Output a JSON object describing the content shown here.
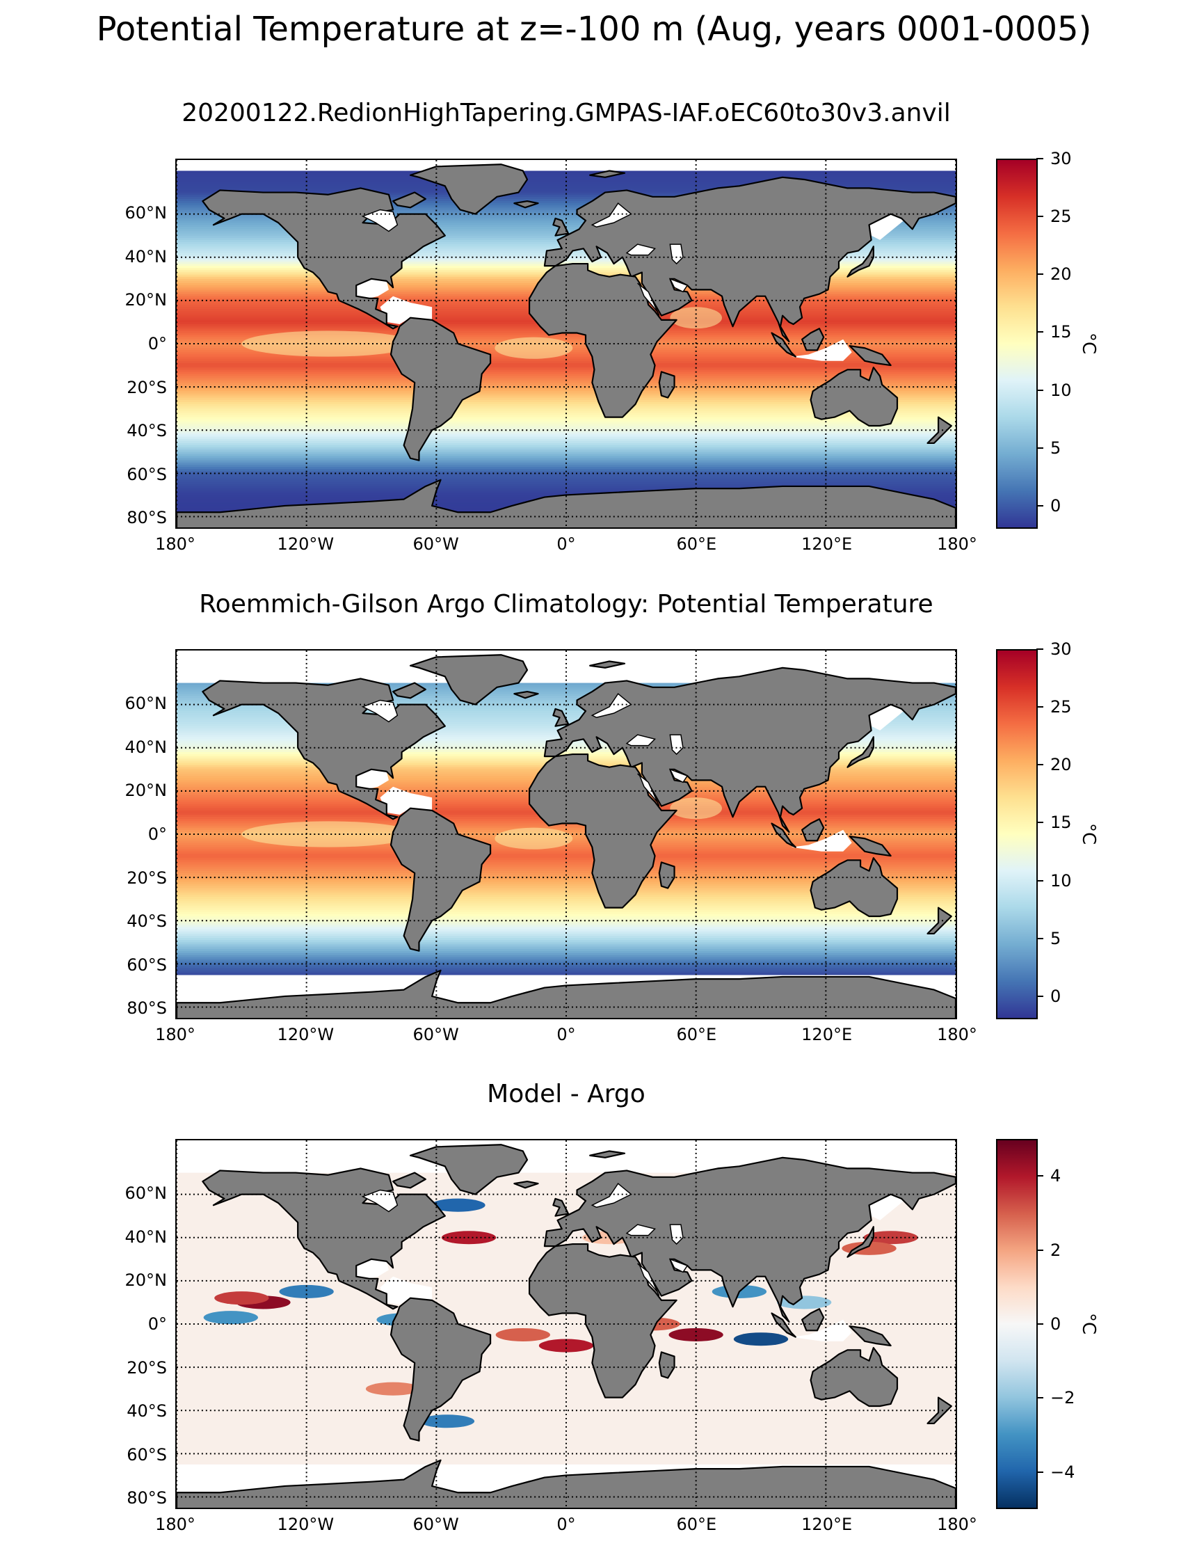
{
  "figure": {
    "suptitle": "Potential Temperature at z=-100 m (Aug, years 0001-0005)"
  },
  "colors": {
    "land": "#7f7f7f",
    "nodata": "#ffffff",
    "grid": "#000000",
    "rdylbu_r": [
      "#313695",
      "#4575b4",
      "#74add1",
      "#abd9e9",
      "#e0f3f8",
      "#ffffbf",
      "#fee090",
      "#fdae61",
      "#f46d43",
      "#d73027",
      "#a50026"
    ],
    "rdbu_r": [
      "#053061",
      "#2166ac",
      "#4393c3",
      "#92c5de",
      "#d1e5f0",
      "#f7f7f7",
      "#fddbc7",
      "#f4a582",
      "#d6604d",
      "#b2182b",
      "#67001f"
    ]
  },
  "chart_data": [
    {
      "type": "heatmap",
      "title": "20200122.RedionHighTapering.GMPAS-IAF.oEC60to30v3.anvil",
      "projection": "PlateCarree",
      "xlim": [
        -180,
        180
      ],
      "ylim": [
        -85,
        85
      ],
      "lon_ticks": [
        -180,
        -120,
        -60,
        0,
        60,
        120,
        180
      ],
      "lon_tick_labels": [
        "180°",
        "120°W",
        "60°W",
        "0°",
        "60°E",
        "120°E",
        "180°"
      ],
      "lat_ticks": [
        60,
        40,
        20,
        0,
        -20,
        -40,
        -60,
        -80
      ],
      "lat_tick_labels": [
        "60°N",
        "40°N",
        "20°N",
        "0°",
        "20°S",
        "40°S",
        "60°S",
        "80°S"
      ],
      "colormap": "RdYlBu_r",
      "clim": [
        -2,
        30
      ],
      "colorbar_ticks": [
        30,
        25,
        20,
        15,
        10,
        5,
        0
      ],
      "colorbar_tick_labels": [
        "30",
        "25",
        "20",
        "15",
        "10",
        "5",
        "0"
      ],
      "colorbar_label": "°C",
      "zonal_mean_profile": {
        "lat": [
          80,
          70,
          60,
          50,
          40,
          30,
          20,
          10,
          0,
          -10,
          -20,
          -30,
          -40,
          -50,
          -60,
          -70,
          -80
        ],
        "values": [
          -1.5,
          -1,
          3,
          6,
          10,
          19,
          24,
          26,
          22,
          25,
          21,
          16,
          12,
          6,
          0,
          -1.5,
          -1.8
        ]
      }
    },
    {
      "type": "heatmap",
      "title": "Roemmich-Gilson Argo Climatology: Potential Temperature",
      "projection": "PlateCarree",
      "xlim": [
        -180,
        180
      ],
      "ylim": [
        -85,
        85
      ],
      "lon_ticks": [
        -180,
        -120,
        -60,
        0,
        60,
        120,
        180
      ],
      "lon_tick_labels": [
        "180°",
        "120°W",
        "60°W",
        "0°",
        "60°E",
        "120°E",
        "180°"
      ],
      "lat_ticks": [
        60,
        40,
        20,
        0,
        -20,
        -40,
        -60,
        -80
      ],
      "lat_tick_labels": [
        "60°N",
        "40°N",
        "20°N",
        "0°",
        "20°S",
        "40°S",
        "60°S",
        "80°S"
      ],
      "colormap": "RdYlBu_r",
      "clim": [
        -2,
        30
      ],
      "colorbar_ticks": [
        30,
        25,
        20,
        15,
        10,
        5,
        0
      ],
      "colorbar_tick_labels": [
        "30",
        "25",
        "20",
        "15",
        "10",
        "5",
        "0"
      ],
      "colorbar_label": "°C",
      "data_coverage_lat": [
        -65,
        70
      ],
      "zonal_mean_profile": {
        "lat": [
          70,
          60,
          50,
          40,
          30,
          20,
          10,
          0,
          -10,
          -20,
          -30,
          -40,
          -50,
          -60,
          -65
        ],
        "values": [
          4,
          7,
          9,
          12,
          19,
          22,
          25,
          21,
          24,
          21,
          17,
          13,
          7,
          1,
          -1
        ]
      }
    },
    {
      "type": "heatmap",
      "title": "Model - Argo",
      "projection": "PlateCarree",
      "xlim": [
        -180,
        180
      ],
      "ylim": [
        -85,
        85
      ],
      "lon_ticks": [
        -180,
        -120,
        -60,
        0,
        60,
        120,
        180
      ],
      "lon_tick_labels": [
        "180°",
        "120°W",
        "60°W",
        "0°",
        "60°E",
        "120°E",
        "180°"
      ],
      "lat_ticks": [
        60,
        40,
        20,
        0,
        -20,
        -40,
        -60,
        -80
      ],
      "lat_tick_labels": [
        "60°N",
        "40°N",
        "20°N",
        "0°",
        "20°S",
        "40°S",
        "60°S",
        "80°S"
      ],
      "colormap": "RdBu_r",
      "clim": [
        -5,
        5
      ],
      "colorbar_ticks": [
        4,
        2,
        0,
        -2,
        -4
      ],
      "colorbar_tick_labels": [
        "4",
        "2",
        "0",
        "−2",
        "−4"
      ],
      "colorbar_label": "°C",
      "anomalies": [
        {
          "lon": -140,
          "lat": 10,
          "value": 4.5
        },
        {
          "lon": -150,
          "lat": 12,
          "value": 3.5
        },
        {
          "lon": -45,
          "lat": 40,
          "value": 4.0
        },
        {
          "lon": 60,
          "lat": -5,
          "value": 4.5
        },
        {
          "lon": 40,
          "lat": 0,
          "value": 3.0
        },
        {
          "lon": 0,
          "lat": -10,
          "value": 4.0
        },
        {
          "lon": -20,
          "lat": -5,
          "value": 3.0
        },
        {
          "lon": 150,
          "lat": 40,
          "value": 3.5
        },
        {
          "lon": 140,
          "lat": 35,
          "value": 3.0
        },
        {
          "lon": 90,
          "lat": -7,
          "value": -4.5
        },
        {
          "lon": 80,
          "lat": 15,
          "value": -3.0
        },
        {
          "lon": -120,
          "lat": 15,
          "value": -3.5
        },
        {
          "lon": -155,
          "lat": 3,
          "value": -3.0
        },
        {
          "lon": -75,
          "lat": 2,
          "value": -3.0
        },
        {
          "lon": -50,
          "lat": 55,
          "value": -4.0
        },
        {
          "lon": -55,
          "lat": -45,
          "value": -3.5
        },
        {
          "lon": -80,
          "lat": -30,
          "value": 2.5
        },
        {
          "lon": 110,
          "lat": 10,
          "value": -2.0
        },
        {
          "lon": 20,
          "lat": 40,
          "value": 1.5
        }
      ]
    }
  ]
}
